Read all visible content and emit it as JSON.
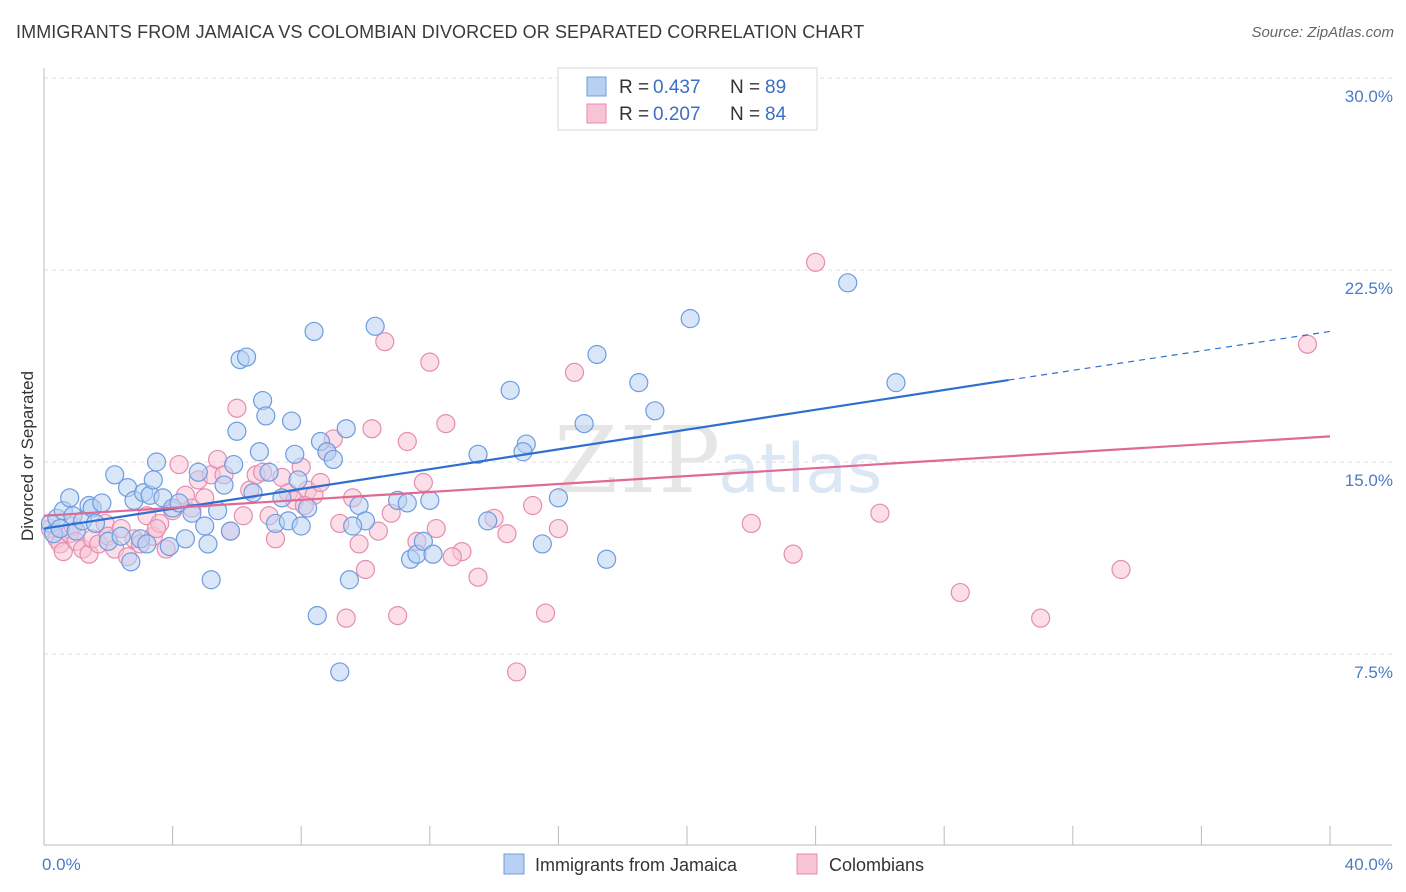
{
  "title": "IMMIGRANTS FROM JAMAICA VS COLOMBIAN DIVORCED OR SEPARATED CORRELATION CHART",
  "source": "Source: ZipAtlas.com",
  "watermark": {
    "part1": "ZIP",
    "part2": "atlas"
  },
  "colors": {
    "blue": "#2f6fd0",
    "blue_fill": "#b8d1f3",
    "pink": "#e06a95",
    "pink_fill": "#f7c3d5",
    "grid": "#dcdcdc",
    "tick_label": "#4a7cc9"
  },
  "legend": {
    "entries": [
      {
        "r_label": "R = ",
        "r_value": "0.437",
        "n_label": "N = ",
        "n_value": "89"
      },
      {
        "r_label": "R = ",
        "r_value": "0.207",
        "n_label": "N = ",
        "n_value": "84"
      }
    ]
  },
  "chart_data": {
    "type": "scatter",
    "title": "IMMIGRANTS FROM JAMAICA VS COLOMBIAN DIVORCED OR SEPARATED CORRELATION CHART",
    "xlabel": "",
    "ylabel": "Divorced or Separated",
    "xlim": [
      0,
      40
    ],
    "ylim": [
      0,
      31
    ],
    "x_tick_labels": [
      {
        "value": 0,
        "label": "0.0%"
      },
      {
        "value": 40,
        "label": "40.0%"
      }
    ],
    "y_tick_labels": [
      {
        "value": 7.5,
        "label": "7.5%"
      },
      {
        "value": 15,
        "label": "15.0%"
      },
      {
        "value": 22.5,
        "label": "22.5%"
      },
      {
        "value": 30,
        "label": "30.0%"
      }
    ],
    "series": [
      {
        "name": "Immigrants from Jamaica",
        "color": "#2f6fd0",
        "trend": {
          "x0": 0,
          "y0": 12.4,
          "x1": 30,
          "y1": 18.2,
          "dash_to_x": 40,
          "dash_to_y": 20.1
        },
        "points": [
          [
            0.2,
            12.6
          ],
          [
            0.3,
            12.2
          ],
          [
            0.4,
            12.8
          ],
          [
            0.5,
            12.4
          ],
          [
            0.6,
            13.1
          ],
          [
            0.8,
            13.6
          ],
          [
            0.9,
            12.9
          ],
          [
            1.0,
            12.3
          ],
          [
            1.2,
            12.7
          ],
          [
            1.4,
            13.3
          ],
          [
            1.5,
            13.2
          ],
          [
            1.6,
            12.6
          ],
          [
            1.8,
            13.4
          ],
          [
            2.0,
            11.9
          ],
          [
            2.2,
            14.5
          ],
          [
            2.4,
            12.1
          ],
          [
            2.6,
            14.0
          ],
          [
            2.8,
            13.5
          ],
          [
            3.0,
            12.0
          ],
          [
            3.1,
            13.8
          ],
          [
            3.3,
            13.7
          ],
          [
            3.4,
            14.3
          ],
          [
            3.5,
            15.0
          ],
          [
            3.7,
            13.6
          ],
          [
            3.9,
            11.7
          ],
          [
            4.0,
            13.2
          ],
          [
            4.2,
            13.4
          ],
          [
            4.4,
            12.0
          ],
          [
            4.6,
            13.0
          ],
          [
            4.8,
            14.6
          ],
          [
            5.0,
            12.5
          ],
          [
            5.2,
            10.4
          ],
          [
            5.4,
            13.1
          ],
          [
            5.6,
            14.1
          ],
          [
            5.8,
            12.3
          ],
          [
            5.9,
            14.9
          ],
          [
            6.0,
            16.2
          ],
          [
            6.1,
            19.0
          ],
          [
            6.3,
            19.1
          ],
          [
            6.5,
            13.8
          ],
          [
            6.7,
            15.4
          ],
          [
            6.8,
            17.4
          ],
          [
            6.9,
            16.8
          ],
          [
            7.0,
            14.6
          ],
          [
            7.2,
            12.6
          ],
          [
            7.4,
            13.6
          ],
          [
            7.6,
            12.7
          ],
          [
            7.7,
            16.6
          ],
          [
            7.8,
            15.3
          ],
          [
            7.9,
            14.3
          ],
          [
            8.0,
            12.5
          ],
          [
            8.2,
            13.2
          ],
          [
            8.4,
            20.1
          ],
          [
            8.5,
            9.0
          ],
          [
            8.6,
            15.8
          ],
          [
            8.8,
            15.4
          ],
          [
            9.0,
            15.1
          ],
          [
            9.2,
            6.8
          ],
          [
            9.4,
            16.3
          ],
          [
            9.5,
            10.4
          ],
          [
            9.8,
            13.3
          ],
          [
            10.0,
            12.7
          ],
          [
            10.3,
            20.3
          ],
          [
            11.0,
            13.5
          ],
          [
            11.4,
            11.2
          ],
          [
            11.6,
            11.4
          ],
          [
            11.8,
            11.9
          ],
          [
            12.0,
            13.5
          ],
          [
            13.5,
            15.3
          ],
          [
            13.8,
            12.7
          ],
          [
            14.5,
            17.8
          ],
          [
            15.0,
            15.7
          ],
          [
            15.5,
            11.8
          ],
          [
            16.0,
            13.6
          ],
          [
            17.2,
            19.2
          ],
          [
            17.5,
            11.2
          ],
          [
            18.5,
            18.1
          ],
          [
            19.0,
            17.0
          ],
          [
            20.1,
            20.6
          ],
          [
            25.0,
            22.0
          ],
          [
            26.5,
            18.1
          ],
          [
            16.8,
            16.5
          ],
          [
            2.7,
            11.1
          ],
          [
            12.1,
            11.4
          ],
          [
            9.6,
            12.5
          ],
          [
            3.2,
            11.8
          ],
          [
            5.1,
            11.8
          ],
          [
            11.3,
            13.4
          ],
          [
            14.9,
            15.4
          ]
        ]
      },
      {
        "name": "Colombians",
        "color": "#e06a95",
        "trend": {
          "x0": 0,
          "y0": 12.9,
          "x1": 40,
          "y1": 16.0
        },
        "points": [
          [
            0.2,
            12.4
          ],
          [
            0.4,
            12.0
          ],
          [
            0.5,
            11.8
          ],
          [
            0.6,
            11.5
          ],
          [
            0.8,
            12.2
          ],
          [
            0.9,
            12.5
          ],
          [
            1.0,
            11.9
          ],
          [
            1.2,
            11.6
          ],
          [
            1.4,
            11.4
          ],
          [
            1.5,
            12.0
          ],
          [
            1.7,
            11.8
          ],
          [
            1.9,
            12.6
          ],
          [
            2.0,
            12.1
          ],
          [
            2.2,
            11.6
          ],
          [
            2.4,
            12.4
          ],
          [
            2.6,
            11.3
          ],
          [
            2.8,
            12.0
          ],
          [
            3.0,
            11.8
          ],
          [
            3.2,
            12.9
          ],
          [
            3.4,
            12.1
          ],
          [
            3.6,
            12.6
          ],
          [
            3.8,
            11.6
          ],
          [
            4.0,
            13.1
          ],
          [
            4.2,
            14.9
          ],
          [
            4.4,
            13.7
          ],
          [
            4.6,
            13.2
          ],
          [
            4.8,
            14.3
          ],
          [
            5.0,
            13.6
          ],
          [
            5.2,
            14.5
          ],
          [
            5.4,
            15.1
          ],
          [
            5.6,
            14.5
          ],
          [
            5.8,
            12.3
          ],
          [
            6.0,
            17.1
          ],
          [
            6.2,
            12.9
          ],
          [
            6.4,
            13.9
          ],
          [
            6.6,
            14.5
          ],
          [
            6.8,
            14.6
          ],
          [
            7.0,
            12.9
          ],
          [
            7.2,
            12.0
          ],
          [
            7.4,
            14.4
          ],
          [
            7.6,
            13.8
          ],
          [
            7.8,
            13.5
          ],
          [
            8.0,
            14.8
          ],
          [
            8.2,
            13.9
          ],
          [
            8.4,
            13.7
          ],
          [
            8.6,
            14.2
          ],
          [
            8.8,
            15.4
          ],
          [
            9.0,
            15.9
          ],
          [
            9.2,
            12.6
          ],
          [
            9.4,
            8.9
          ],
          [
            9.6,
            13.6
          ],
          [
            9.8,
            11.8
          ],
          [
            10.0,
            10.8
          ],
          [
            10.2,
            16.3
          ],
          [
            10.4,
            12.3
          ],
          [
            10.6,
            19.7
          ],
          [
            10.8,
            13.0
          ],
          [
            11.0,
            9.0
          ],
          [
            11.3,
            15.8
          ],
          [
            11.6,
            11.9
          ],
          [
            11.8,
            14.2
          ],
          [
            12.0,
            18.9
          ],
          [
            12.2,
            12.4
          ],
          [
            12.5,
            16.5
          ],
          [
            13.0,
            11.5
          ],
          [
            13.5,
            10.5
          ],
          [
            14.0,
            12.8
          ],
          [
            14.4,
            12.2
          ],
          [
            14.7,
            6.8
          ],
          [
            15.2,
            13.3
          ],
          [
            15.6,
            9.1
          ],
          [
            16.0,
            12.4
          ],
          [
            16.5,
            18.5
          ],
          [
            22.0,
            12.6
          ],
          [
            23.3,
            11.4
          ],
          [
            24.0,
            22.8
          ],
          [
            26.0,
            13.0
          ],
          [
            28.5,
            9.9
          ],
          [
            31.0,
            8.9
          ],
          [
            33.5,
            10.8
          ],
          [
            39.3,
            19.6
          ],
          [
            3.5,
            12.4
          ],
          [
            8.1,
            13.3
          ],
          [
            12.7,
            11.3
          ]
        ]
      }
    ]
  },
  "bottom_legend": {
    "items": [
      {
        "label": "Immigrants from Jamaica"
      },
      {
        "label": "Colombians"
      }
    ]
  }
}
